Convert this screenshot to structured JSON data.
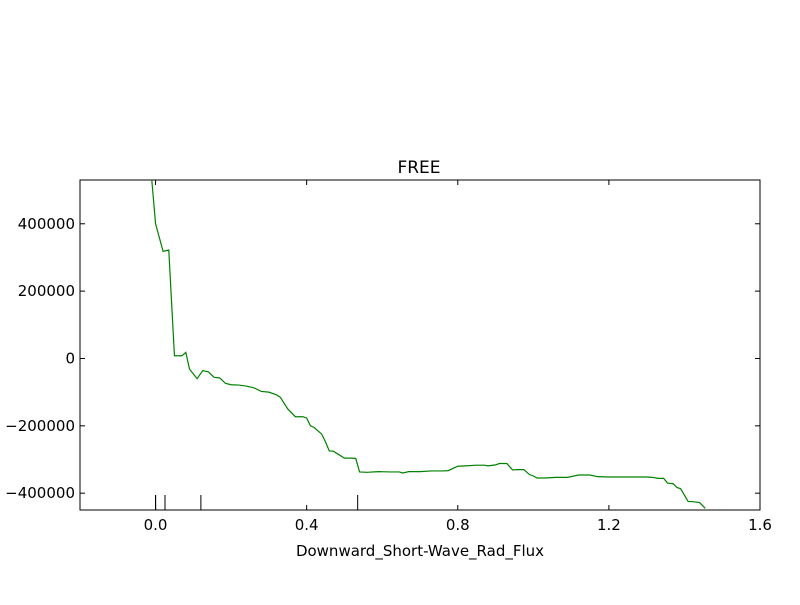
{
  "chart_data": {
    "type": "line",
    "title": "FREE",
    "xlabel": "Downward_Short-Wave_Rad_Flux",
    "ylabel": "",
    "xlim": [
      -0.2,
      1.6
    ],
    "ylim": [
      -450000,
      530000
    ],
    "x_ticks": [
      0.0,
      0.4,
      0.8,
      1.2,
      1.6
    ],
    "x_tick_labels": [
      "0.0",
      "0.4",
      "0.8",
      "1.2",
      "1.6"
    ],
    "y_ticks": [
      400000,
      200000,
      0,
      -200000,
      -400000
    ],
    "y_tick_labels": [
      "400000",
      "200000",
      "0",
      "−200000",
      "−400000"
    ],
    "grid": false,
    "series": [
      {
        "color": "#008000",
        "x": [
          -0.01,
          0.0,
          0.02,
          0.035,
          0.05,
          0.07,
          0.08,
          0.09,
          0.11,
          0.125,
          0.14,
          0.155,
          0.17,
          0.185,
          0.2,
          0.22,
          0.24,
          0.26,
          0.28,
          0.3,
          0.32,
          0.33,
          0.35,
          0.37,
          0.39,
          0.4,
          0.41,
          0.42,
          0.44,
          0.45,
          0.46,
          0.47,
          0.48,
          0.5,
          0.52,
          0.53,
          0.54,
          0.56,
          0.59,
          0.62,
          0.645,
          0.655,
          0.67,
          0.7,
          0.73,
          0.76,
          0.775,
          0.8,
          0.82,
          0.85,
          0.87,
          0.88,
          0.9,
          0.91,
          0.92,
          0.93,
          0.945,
          0.96,
          0.975,
          0.99,
          1.0,
          1.01,
          1.03,
          1.06,
          1.09,
          1.12,
          1.15,
          1.17,
          1.2,
          1.25,
          1.3,
          1.315,
          1.32,
          1.33,
          1.345,
          1.355,
          1.37,
          1.38,
          1.39,
          1.41,
          1.42,
          1.44,
          1.455
        ],
        "y": [
          530000,
          400000,
          318000,
          322000,
          8000,
          8000,
          18000,
          -32000,
          -60000,
          -36000,
          -40000,
          -56000,
          -58000,
          -74000,
          -78000,
          -79000,
          -82000,
          -87000,
          -98000,
          -100000,
          -108000,
          -115000,
          -150000,
          -173000,
          -173000,
          -177000,
          -200000,
          -205000,
          -225000,
          -248000,
          -275000,
          -275000,
          -282000,
          -296000,
          -296000,
          -297000,
          -337000,
          -338000,
          -336000,
          -337000,
          -337000,
          -340000,
          -336000,
          -336000,
          -334000,
          -334000,
          -333000,
          -320000,
          -319000,
          -317000,
          -317000,
          -319000,
          -316000,
          -312000,
          -312000,
          -312000,
          -331000,
          -330000,
          -330000,
          -345000,
          -349000,
          -355000,
          -355000,
          -353000,
          -353000,
          -346000,
          -346000,
          -351000,
          -352000,
          -352000,
          -352000,
          -353000,
          -354000,
          -356000,
          -356000,
          -370000,
          -372000,
          -383000,
          -387000,
          -425000,
          -425000,
          -428000,
          -445000
        ]
      }
    ],
    "rug_x": [
      0.0,
      0.0,
      0.0,
      0.025,
      0.12,
      0.535
    ]
  }
}
